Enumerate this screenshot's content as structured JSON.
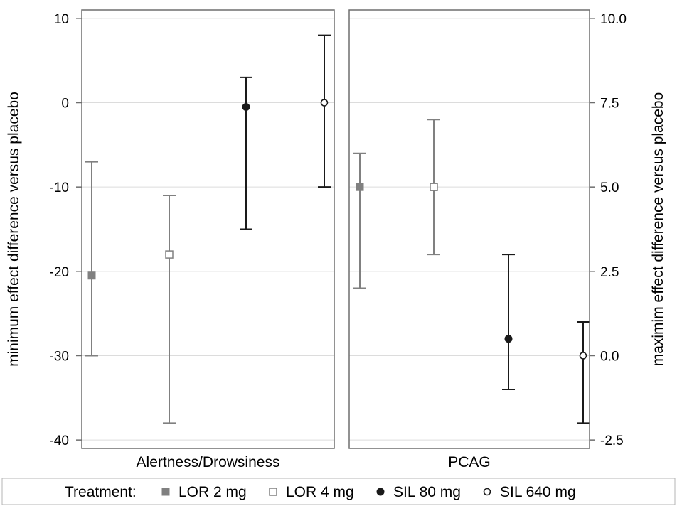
{
  "chart_data": {
    "type": "scatter",
    "subtype": "point estimate with error bars, two panels",
    "panels": [
      {
        "label": "Alertness/Drowsiness",
        "axis": "left",
        "ylabel": "minimum effect difference versus placebo",
        "ylim": [
          -41,
          11
        ],
        "yticks": [
          10,
          0,
          -10,
          -20,
          -30,
          -40
        ],
        "ytick_labels": [
          "10",
          "0",
          "-10",
          "-20",
          "-30",
          "-40"
        ],
        "points": [
          {
            "treatment": "LOR 2 mg",
            "estimate": -20.5,
            "lower": -30,
            "upper": -7
          },
          {
            "treatment": "LOR 4 mg",
            "estimate": -18,
            "lower": -38,
            "upper": -11
          },
          {
            "treatment": "SIL 80 mg",
            "estimate": -0.5,
            "lower": -15,
            "upper": 3
          },
          {
            "treatment": "SIL 640 mg",
            "estimate": 0,
            "lower": -10,
            "upper": 8
          }
        ]
      },
      {
        "label": "PCAG",
        "axis": "right",
        "ylabel": "maximim effect difference versus placebo",
        "ylim": [
          -2.75,
          10.25
        ],
        "yticks": [
          10,
          7.5,
          5,
          2.5,
          0,
          -2.5
        ],
        "ytick_labels": [
          "10.0",
          "7.5",
          "5.0",
          "2.5",
          "0.0",
          "-2.5"
        ],
        "points": [
          {
            "treatment": "LOR 2 mg",
            "estimate": 5,
            "lower": 2,
            "upper": 6
          },
          {
            "treatment": "LOR 4 mg",
            "estimate": 5,
            "lower": 3,
            "upper": 7
          },
          {
            "treatment": "SIL 80 mg",
            "estimate": 0.5,
            "lower": -1,
            "upper": 3
          },
          {
            "treatment": "SIL 640 mg",
            "estimate": 0,
            "lower": -2,
            "upper": 1
          }
        ]
      }
    ],
    "grid": "horizontal",
    "legend": {
      "title": "Treatment:",
      "placement": "bottom",
      "entries": [
        {
          "name": "LOR 2 mg",
          "marker": "filled-square",
          "color": "#808080"
        },
        {
          "name": "LOR 4 mg",
          "marker": "open-square",
          "color": "#808080"
        },
        {
          "name": "SIL 80 mg",
          "marker": "filled-circle",
          "color": "#1a1a1a"
        },
        {
          "name": "SIL 640 mg",
          "marker": "open-circle",
          "color": "#1a1a1a"
        }
      ]
    }
  }
}
